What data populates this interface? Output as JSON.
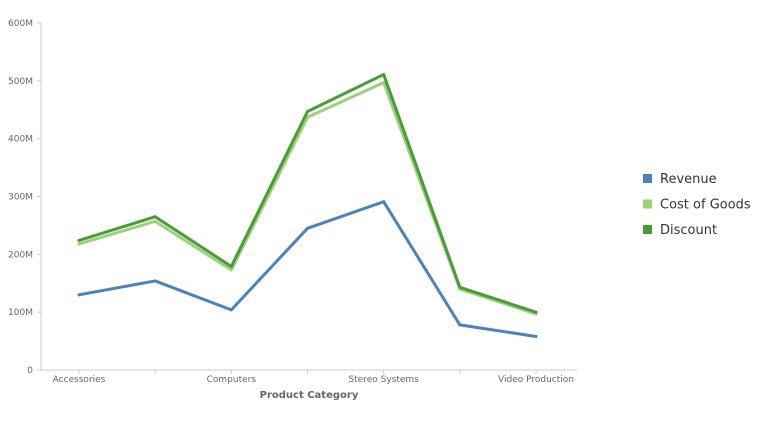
{
  "chart_data": {
    "type": "line",
    "categories": [
      "Accessories",
      "",
      "Computers",
      "",
      "Stereo Systems",
      "",
      "Video Production"
    ],
    "category_ticks_shown": [
      "Accessories",
      "Computers",
      "Stereo Systems",
      "Video Production"
    ],
    "xlabel": "Product Category",
    "ylabel": "",
    "ylim": [
      0,
      600000000
    ],
    "yticks": [
      {
        "value": 0,
        "label": "0"
      },
      {
        "value": 100000000,
        "label": "100M"
      },
      {
        "value": 200000000,
        "label": "200M"
      },
      {
        "value": 300000000,
        "label": "300M"
      },
      {
        "value": 400000000,
        "label": "400M"
      },
      {
        "value": 500000000,
        "label": "500M"
      },
      {
        "value": 600000000,
        "label": "600M"
      }
    ],
    "grid": false,
    "legend_position": "right",
    "series": [
      {
        "name": "Revenue",
        "color": "#4e81b8",
        "values": [
          130000000,
          154000000,
          104000000,
          245000000,
          291000000,
          78000000,
          58000000
        ]
      },
      {
        "name": "Cost of Goods",
        "color": "#9bd27a",
        "values": [
          218000000,
          257000000,
          173000000,
          437000000,
          497000000,
          140000000,
          97000000
        ]
      },
      {
        "name": "Discount",
        "color": "#4a9b3a",
        "values": [
          224000000,
          265000000,
          179000000,
          447000000,
          511000000,
          143000000,
          100000000
        ]
      }
    ]
  }
}
